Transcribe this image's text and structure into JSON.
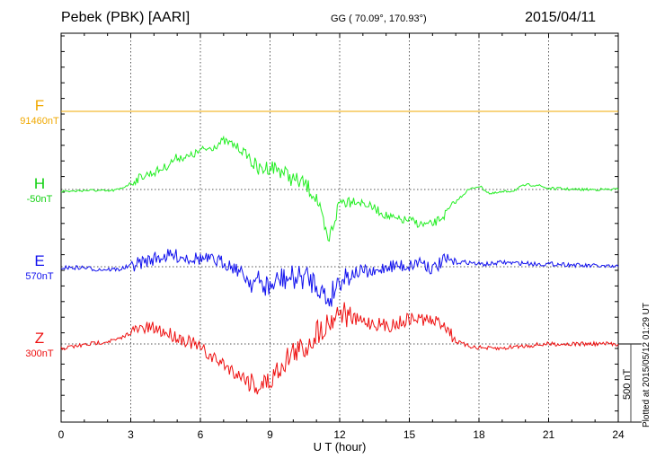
{
  "header": {
    "title": "Pebek (PBK)  [AARI]",
    "coords": "GG ( 70.09°, 170.93°)",
    "date": "2015/04/11"
  },
  "footer_note": "Plotted at 2015/05/12 01:29 UT",
  "chart_data": {
    "type": "line",
    "xlabel": "U T (hour)",
    "xlim": [
      0,
      24
    ],
    "xticks": [
      "0",
      "3",
      "6",
      "9",
      "12",
      "15",
      "18",
      "21",
      "24"
    ],
    "scale_bar": {
      "label": "500 nT",
      "value_nT": 500
    },
    "grid": true,
    "x": [
      0,
      0.5,
      1,
      1.5,
      2,
      2.5,
      3,
      3.5,
      4,
      4.5,
      5,
      5.5,
      6,
      6.5,
      7,
      7.5,
      8,
      8.5,
      9,
      9.5,
      10,
      10.5,
      11,
      11.5,
      12,
      12.5,
      13,
      13.5,
      14,
      14.5,
      15,
      15.5,
      16,
      16.5,
      17,
      17.5,
      18,
      18.5,
      19,
      19.5,
      20,
      20.5,
      21,
      21.5,
      22,
      22.5,
      23,
      23.5,
      24
    ],
    "series": [
      {
        "name": "F",
        "baseline_label": "91460nT",
        "color": "#f0a800",
        "noise": 0,
        "values": [
          0,
          0,
          0,
          0,
          0,
          0,
          0,
          0,
          0,
          0,
          0,
          0,
          0,
          0,
          0,
          0,
          0,
          0,
          0,
          0,
          0,
          0,
          0,
          0,
          0,
          0,
          0,
          0,
          0,
          0,
          0,
          0,
          0,
          0,
          0,
          0,
          0,
          0,
          0,
          0,
          0,
          0,
          0,
          0,
          0,
          0,
          0,
          0,
          0
        ]
      },
      {
        "name": "H",
        "baseline_label": "-50nT",
        "color": "#22ee22",
        "noise": 1,
        "values": [
          -11,
          -11,
          -6,
          -6,
          -11,
          0,
          40,
          86,
          109,
          144,
          207,
          207,
          247,
          270,
          310,
          282,
          224,
          121,
          150,
          121,
          63,
          35,
          -52,
          -340,
          -80,
          -63,
          -86,
          -121,
          -167,
          -196,
          -196,
          -224,
          -224,
          -167,
          -80,
          -6,
          23,
          -29,
          -17,
          -6,
          29,
          29,
          6,
          6,
          0,
          0,
          0,
          0,
          0
        ]
      },
      {
        "name": "E",
        "baseline_label": "570nT",
        "color": "#1010ee",
        "noise": 1.6,
        "values": [
          -6,
          -6,
          -6,
          -17,
          -17,
          -17,
          6,
          29,
          52,
          69,
          69,
          58,
          52,
          40,
          29,
          -6,
          -75,
          -104,
          -132,
          -75,
          -75,
          -63,
          -104,
          -220,
          -75,
          -46,
          -29,
          -46,
          6,
          6,
          6,
          40,
          -17,
          40,
          29,
          29,
          17,
          17,
          29,
          23,
          23,
          17,
          17,
          17,
          12,
          6,
          6,
          0,
          0
        ]
      },
      {
        "name": "Z",
        "baseline_label": "300nT",
        "color": "#ee1010",
        "noise": 1.6,
        "values": [
          -29,
          -17,
          -6,
          6,
          17,
          29,
          75,
          98,
          98,
          75,
          46,
          17,
          -29,
          -86,
          -127,
          -184,
          -224,
          -270,
          -242,
          -127,
          -52,
          -29,
          75,
          132,
          218,
          161,
          144,
          132,
          115,
          132,
          161,
          161,
          144,
          132,
          17,
          -12,
          -23,
          -29,
          -29,
          -17,
          -12,
          -6,
          0,
          0,
          0,
          0,
          0,
          0,
          0
        ]
      }
    ]
  }
}
